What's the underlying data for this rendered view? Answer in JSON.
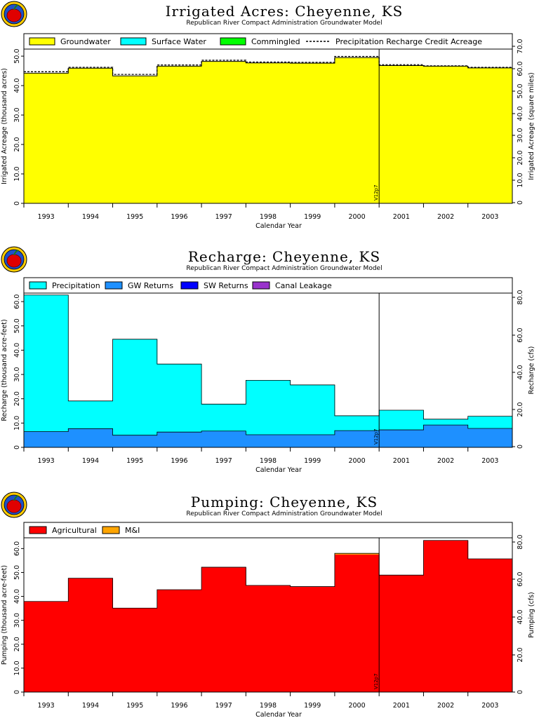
{
  "colors": {
    "groundwater": "#ffff00",
    "surface_water": "#00ffff",
    "commingled": "#00ff00",
    "precipitation": "#00ffff",
    "gw_returns": "#1e90ff",
    "sw_returns": "#0000ff",
    "canal_leakage": "#9932cc",
    "agricultural": "#ff0000",
    "mi": "#ffa500"
  },
  "logo_icon": "apple-logo-icon",
  "chart_data": [
    {
      "type": "area",
      "title": "Irrigated Acres: Cheyenne, KS",
      "subtitle": "Republican River Compact Administration Groundwater Model",
      "xlabel": "Calendar Year",
      "ylabel": "Irrigated Acreage (thousand acres)",
      "ylabel_right": "Irrigated Acreage (square miles)",
      "categories": [
        "1993",
        "1994",
        "1995",
        "1996",
        "1997",
        "1998",
        "1999",
        "2000",
        "2001",
        "2002",
        "2003"
      ],
      "ylim": [
        0,
        52.4
      ],
      "yticks": [
        "0",
        "10.0",
        "20.0",
        "30.0",
        "40.0",
        "50.0"
      ],
      "yticks_right": [
        "0",
        "10.0",
        "20.0",
        "30.0",
        "40.0",
        "50.0",
        "60.0",
        "70.0"
      ],
      "series": [
        {
          "name": "Groundwater",
          "values": [
            44.2,
            45.9,
            43.3,
            46.6,
            48.2,
            47.7,
            47.6,
            49.5,
            46.8,
            46.6,
            46.0
          ]
        },
        {
          "name": "Surface Water",
          "values": [
            0,
            0,
            0,
            0,
            0,
            0,
            0,
            0,
            0,
            0,
            0
          ]
        },
        {
          "name": "Commingled",
          "values": [
            0,
            0,
            0,
            0,
            0,
            0,
            0,
            0,
            0,
            0,
            0
          ]
        },
        {
          "name": "Precipitation Recharge Credit Acreage",
          "values": [
            44.7,
            46.2,
            43.8,
            47.0,
            48.6,
            48.0,
            47.9,
            49.9,
            47.1,
            46.7,
            46.2
          ]
        }
      ],
      "marker_label": "V12p7"
    },
    {
      "type": "area",
      "title": "Recharge: Cheyenne, KS",
      "subtitle": "Republican River Compact Administration Groundwater Model",
      "xlabel": "Calendar Year",
      "ylabel": "Recharge (thousand acre-feet)",
      "ylabel_right": "Recharge (cfs)",
      "categories": [
        "1993",
        "1994",
        "1995",
        "1996",
        "1997",
        "1998",
        "1999",
        "2000",
        "2001",
        "2002",
        "2003"
      ],
      "ylim": [
        0,
        63.5
      ],
      "yticks": [
        "0",
        "10.0",
        "20.0",
        "30.0",
        "40.0",
        "50.0",
        "60.0"
      ],
      "yticks_right": [
        "0",
        "20.0",
        "40.0",
        "60.0",
        "80.0"
      ],
      "series": [
        {
          "name": "Precipitation",
          "values": [
            56.2,
            11.4,
            39.5,
            28.0,
            11.1,
            22.4,
            20.5,
            6.1,
            8.1,
            2.4,
            5.0
          ]
        },
        {
          "name": "GW Returns",
          "values": [
            6.5,
            7.7,
            5.0,
            6.3,
            6.7,
            5.2,
            5.2,
            6.9,
            7.2,
            9.2,
            7.8
          ]
        },
        {
          "name": "SW Returns",
          "values": [
            0,
            0,
            0,
            0,
            0,
            0,
            0,
            0,
            0,
            0,
            0
          ]
        },
        {
          "name": "Canal Leakage",
          "values": [
            0,
            0,
            0,
            0,
            0,
            0,
            0,
            0,
            0,
            0,
            0
          ]
        }
      ],
      "marker_label": "V12p7"
    },
    {
      "type": "area",
      "title": "Pumping: Cheyenne, KS",
      "subtitle": "Republican River Compact Administration Groundwater Model",
      "xlabel": "Calendar Year",
      "ylabel": "Pumping (thousand acre-feet)",
      "ylabel_right": "Pumping (cfs)",
      "categories": [
        "1993",
        "1994",
        "1995",
        "1996",
        "1997",
        "1998",
        "1999",
        "2000",
        "2001",
        "2002",
        "2003"
      ],
      "ylim": [
        0,
        64.5
      ],
      "yticks": [
        "0",
        "10.0",
        "20.0",
        "30.0",
        "40.0",
        "50.0",
        "60.0"
      ],
      "yticks_right": [
        "0",
        "20.0",
        "40.0",
        "60.0",
        "80.0"
      ],
      "series": [
        {
          "name": "Agricultural",
          "values": [
            37.9,
            47.6,
            35.1,
            42.8,
            52.2,
            44.6,
            44.1,
            57.5,
            48.9,
            63.4,
            55.7
          ]
        },
        {
          "name": "M&I",
          "values": [
            0,
            0,
            0,
            0,
            0,
            0,
            0,
            0.5,
            0,
            0,
            0
          ]
        }
      ],
      "marker_label": "V12p7"
    }
  ]
}
